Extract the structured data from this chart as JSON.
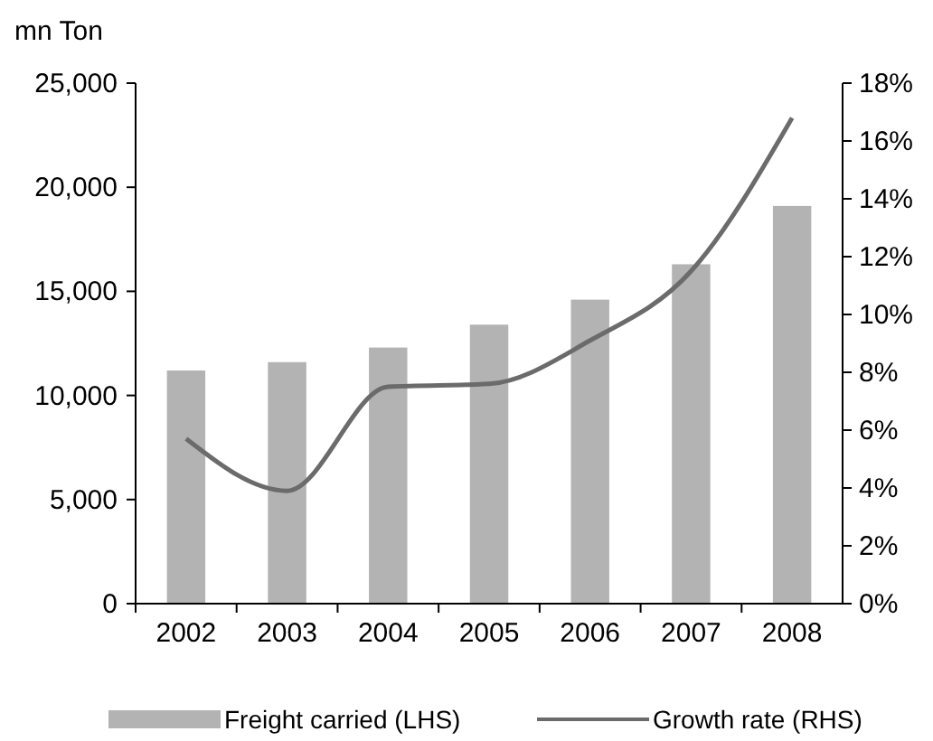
{
  "chart_data": {
    "type": "bar",
    "ylabel": "mn Ton",
    "categories": [
      "2002",
      "2003",
      "2004",
      "2005",
      "2006",
      "2007",
      "2008"
    ],
    "series": [
      {
        "name": "Freight carried (LHS)",
        "color": "#b3b3b3",
        "values": [
          11200,
          11600,
          12300,
          13400,
          14600,
          16300,
          19100
        ]
      },
      {
        "name": "Growth rate (RHS)",
        "type": "line",
        "axis": "y2",
        "color": "#6b6b6b",
        "values": [
          5.7,
          3.9,
          7.5,
          7.6,
          9.1,
          11.5,
          16.8
        ]
      }
    ],
    "ylim": [
      0,
      25000
    ],
    "yticks": [
      {
        "value": 0,
        "label": "0"
      },
      {
        "value": 5000,
        "label": "5,000"
      },
      {
        "value": 10000,
        "label": "10,000"
      },
      {
        "value": 15000,
        "label": "15,000"
      },
      {
        "value": 20000,
        "label": "20,000"
      },
      {
        "value": 25000,
        "label": "25,000"
      }
    ],
    "y2lim": [
      0,
      18
    ],
    "y2ticks": [
      {
        "value": 0,
        "label": "0%"
      },
      {
        "value": 2,
        "label": "2%"
      },
      {
        "value": 4,
        "label": "4%"
      },
      {
        "value": 6,
        "label": "6%"
      },
      {
        "value": 8,
        "label": "8%"
      },
      {
        "value": 10,
        "label": "10%"
      },
      {
        "value": 12,
        "label": "12%"
      },
      {
        "value": 14,
        "label": "14%"
      },
      {
        "value": 16,
        "label": "16%"
      },
      {
        "value": 18,
        "label": "18%"
      }
    ],
    "grid": false,
    "legend": "bottom",
    "marker": "none",
    "line_style": "solid"
  }
}
